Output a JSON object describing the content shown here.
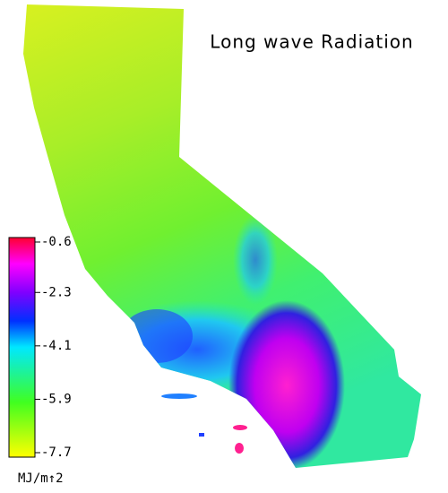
{
  "title": "Long wave Radiation",
  "colorbar": {
    "lim": [
      -7.7,
      -0.6
    ],
    "ticks": [
      -0.6,
      -2.3,
      -4.1,
      -5.9,
      -7.7
    ],
    "unit": "MJ/m↑2"
  }
}
